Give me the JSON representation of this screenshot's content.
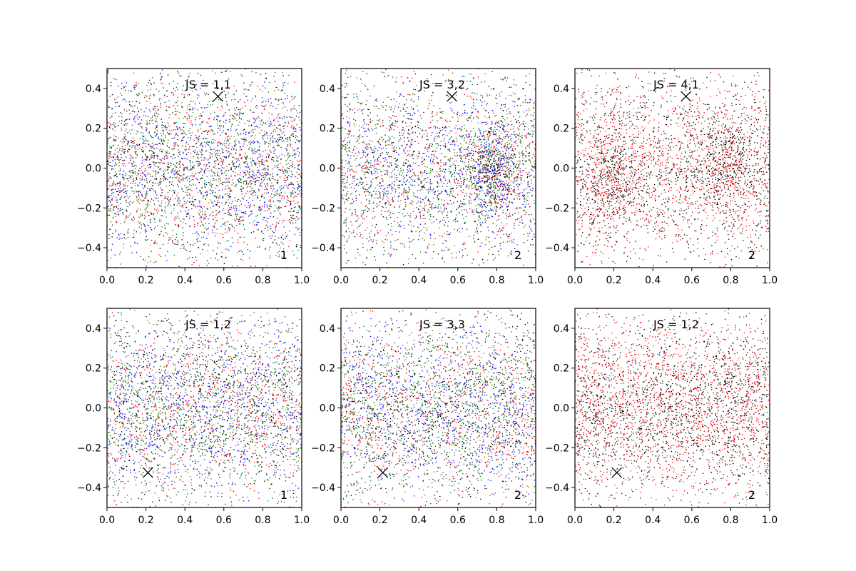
{
  "chart_data": [
    {
      "type": "scatter",
      "title": "JS = 1,1",
      "corner_label": "1",
      "xlim": [
        0,
        1
      ],
      "ylim": [
        -0.5,
        0.5
      ],
      "x_ticks": [
        "0.0",
        "0.2",
        "0.4",
        "0.6",
        "0.8",
        "1.0"
      ],
      "y_ticks": [
        "−0.4",
        "−0.2",
        "0.0",
        "0.2",
        "0.4"
      ],
      "marker": {
        "x": 0.57,
        "y": 0.36,
        "symbol": "x",
        "color": "#000000"
      },
      "series_colors": [
        "#ff0000",
        "#008000",
        "#0000ff",
        "#000000"
      ],
      "points_per_series": 900,
      "density_hotspots": []
    },
    {
      "type": "scatter",
      "title": "JS = 3,2",
      "corner_label": "2",
      "xlim": [
        0,
        1
      ],
      "ylim": [
        -0.5,
        0.5
      ],
      "x_ticks": [
        "0.0",
        "0.2",
        "0.4",
        "0.6",
        "0.8",
        "1.0"
      ],
      "y_ticks": [
        "−0.4",
        "−0.2",
        "0.0",
        "0.2",
        "0.4"
      ],
      "marker": {
        "x": 0.57,
        "y": 0.36,
        "symbol": "x",
        "color": "#000000"
      },
      "series_colors": [
        "#ff0000",
        "#008000",
        "#0000ff",
        "#000000"
      ],
      "points_per_series": 900,
      "density_hotspots": [
        [
          0.78,
          0.0
        ]
      ]
    },
    {
      "type": "scatter",
      "title": "JS = 4,1",
      "corner_label": "2",
      "xlim": [
        0,
        1
      ],
      "ylim": [
        -0.5,
        0.5
      ],
      "x_ticks": [
        "0.0",
        "0.2",
        "0.4",
        "0.6",
        "0.8",
        "1.0"
      ],
      "y_ticks": [
        "−0.4",
        "−0.2",
        "0.0",
        "0.2",
        "0.4"
      ],
      "marker": {
        "x": 0.57,
        "y": 0.36,
        "symbol": "x",
        "color": "#000000"
      },
      "series_colors": [
        "#ff0000",
        "#000000"
      ],
      "points_per_series": 1700,
      "density_hotspots": [
        [
          0.2,
          -0.05
        ],
        [
          0.78,
          0.02
        ]
      ]
    },
    {
      "type": "scatter",
      "title": "JS = 1,2",
      "corner_label": "1",
      "xlim": [
        0,
        1
      ],
      "ylim": [
        -0.5,
        0.5
      ],
      "x_ticks": [
        "0.0",
        "0.2",
        "0.4",
        "0.6",
        "0.8",
        "1.0"
      ],
      "y_ticks": [
        "−0.4",
        "−0.2",
        "0.0",
        "0.2",
        "0.4"
      ],
      "marker": {
        "x": 0.21,
        "y": -0.325,
        "symbol": "x",
        "color": "#000000"
      },
      "series_colors": [
        "#ff0000",
        "#008000",
        "#0000ff",
        "#000000"
      ],
      "points_per_series": 900,
      "density_hotspots": []
    },
    {
      "type": "scatter",
      "title": "JS = 3,3",
      "corner_label": "2",
      "xlim": [
        0,
        1
      ],
      "ylim": [
        -0.5,
        0.5
      ],
      "x_ticks": [
        "0.0",
        "0.2",
        "0.4",
        "0.6",
        "0.8",
        "1.0"
      ],
      "y_ticks": [
        "−0.4",
        "−0.2",
        "0.0",
        "0.2",
        "0.4"
      ],
      "marker": {
        "x": 0.215,
        "y": -0.325,
        "symbol": "x",
        "color": "#000000"
      },
      "series_colors": [
        "#ff0000",
        "#008000",
        "#0000ff",
        "#000000"
      ],
      "points_per_series": 900,
      "density_hotspots": []
    },
    {
      "type": "scatter",
      "title": "JS = 1,2",
      "corner_label": "2",
      "xlim": [
        0,
        1
      ],
      "ylim": [
        -0.5,
        0.5
      ],
      "x_ticks": [
        "0.0",
        "0.2",
        "0.4",
        "0.6",
        "0.8",
        "1.0"
      ],
      "y_ticks": [
        "−0.4",
        "−0.2",
        "0.0",
        "0.2",
        "0.4"
      ],
      "marker": {
        "x": 0.215,
        "y": -0.325,
        "symbol": "x",
        "color": "#000000"
      },
      "series_colors": [
        "#ff0000",
        "#000000"
      ],
      "points_per_series": 1700,
      "density_hotspots": []
    }
  ]
}
